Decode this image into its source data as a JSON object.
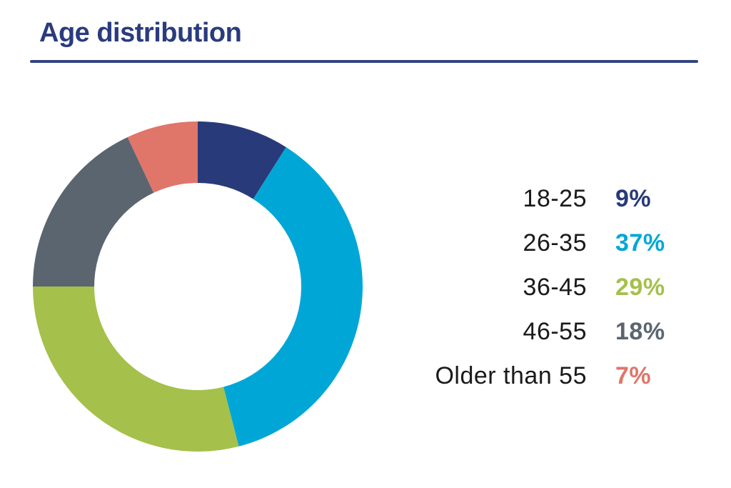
{
  "header": {
    "title": "Age distribution"
  },
  "theme": {
    "background": "#ffffff",
    "title_color": "#2a3b7e",
    "rule_color": "#324482",
    "label_color": "#1a1a1a"
  },
  "chart_data": {
    "type": "pie",
    "subtype": "donut",
    "title": "Age distribution",
    "categories": [
      "18-25",
      "26-35",
      "36-45",
      "46-55",
      "Older than 55"
    ],
    "values": [
      9,
      37,
      29,
      18,
      7
    ],
    "unit": "%",
    "colors": [
      "#283a79",
      "#00a7d6",
      "#a5c04b",
      "#5b6570",
      "#e0756a"
    ],
    "start_angle_deg": 0,
    "direction": "clockwise",
    "outer_radius_px": 231,
    "inner_radius_px": 145,
    "inner_radius_ratio": 0.63,
    "legend_position": "right",
    "legend_value_suffix": "%"
  }
}
